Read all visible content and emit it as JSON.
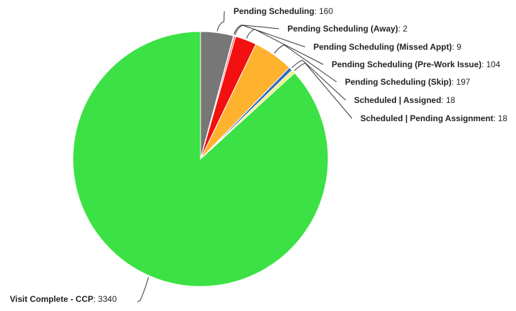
{
  "chart_data": {
    "type": "pie",
    "slices": [
      {
        "label": "Pending Scheduling",
        "value": 160,
        "color": "#777777"
      },
      {
        "label": "Pending Scheduling (Away)",
        "value": 2,
        "color": "#c22fd2"
      },
      {
        "label": "Pending Scheduling (Missed Appt)",
        "value": 9,
        "color": "#ff6b6b"
      },
      {
        "label": "Pending Scheduling (Pre-Work Issue)",
        "value": 104,
        "color": "#f21010"
      },
      {
        "label": "Pending Scheduling (Skip)",
        "value": 197,
        "color": "#ffb22e"
      },
      {
        "label": "Scheduled | Assigned",
        "value": 18,
        "color": "#2b6cc4"
      },
      {
        "label": "Scheduled | Pending Assignment",
        "value": 18,
        "color": "#f5f07a"
      },
      {
        "label": "Visit Complete - CCP",
        "value": 3340,
        "color": "#3ce145"
      }
    ],
    "legend": "none"
  }
}
